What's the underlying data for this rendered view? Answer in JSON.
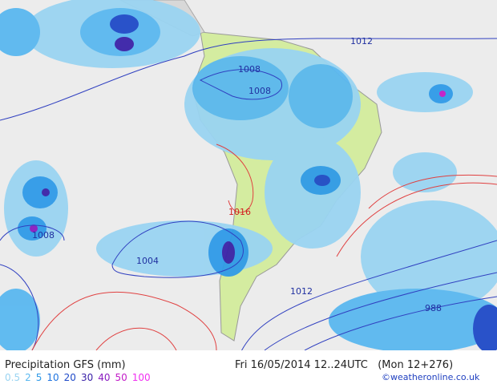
{
  "header": {
    "title": "Precipitation GFS (mm)",
    "valid_time": "Fri 16/05/2014 12..24UTC",
    "run": "(Mon 12+276)",
    "credit": "©weatheronline.co.uk"
  },
  "legend": [
    {
      "label": 0.5,
      "color": "#9ad4f2"
    },
    {
      "label": 2,
      "color": "#5ab8f0"
    },
    {
      "label": 5,
      "color": "#2f9ae8"
    },
    {
      "label": 10,
      "color": "#1f74e0"
    },
    {
      "label": 20,
      "color": "#1f4ac8"
    },
    {
      "label": 30,
      "color": "#3a22a8"
    },
    {
      "label": 40,
      "color": "#8a1cc0"
    },
    {
      "label": 50,
      "color": "#c21cc8"
    },
    {
      "label": 100,
      "color": "#f030f0"
    }
  ],
  "isobar_labels": [
    1012,
    1008,
    1008,
    1016,
    1004,
    1008,
    1012,
    988
  ]
}
